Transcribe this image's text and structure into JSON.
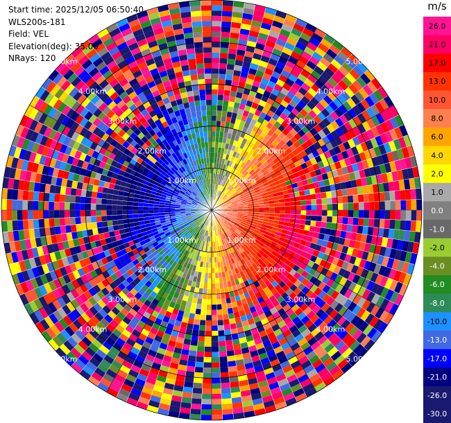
{
  "header": {
    "start_time": "Start time: 2025/12/05 06:50:40",
    "instrument": "WLS200s-181",
    "field": "Field: VEL",
    "elevation": "Elevation(deg): 35.00",
    "nrays": "NRays: 120"
  },
  "colorbar": {
    "unit": "m/s",
    "levels": [
      {
        "label": "26.0",
        "color": "#ff1493"
      },
      {
        "label": "21.0",
        "color": "#ff0066"
      },
      {
        "label": "17.0",
        "color": "#ff0000"
      },
      {
        "label": "13.0",
        "color": "#ff3300"
      },
      {
        "label": "10.0",
        "color": "#ff5533"
      },
      {
        "label": "8.0",
        "color": "#ff7f50"
      },
      {
        "label": "6.0",
        "color": "#ffa500"
      },
      {
        "label": "4.0",
        "color": "#ffd700"
      },
      {
        "label": "2.0",
        "color": "#ffff00"
      },
      {
        "label": "1.0",
        "color": "#a9a9a9"
      },
      {
        "label": "0.0",
        "color": "#808080"
      },
      {
        "label": "-1.0",
        "color": "#696969"
      },
      {
        "label": "-2.0",
        "color": "#9acd32"
      },
      {
        "label": "-4.0",
        "color": "#6b8e23"
      },
      {
        "label": "-6.0",
        "color": "#228b22"
      },
      {
        "label": "-8.0",
        "color": "#2e8b57"
      },
      {
        "label": "-10.0",
        "color": "#1e90ff"
      },
      {
        "label": "-13.0",
        "color": "#4169e1"
      },
      {
        "label": "-17.0",
        "color": "#0000ff"
      },
      {
        "label": "-21.0",
        "color": "#000080"
      },
      {
        "label": "-26.0",
        "color": "#191970"
      },
      {
        "label": "-30.0",
        "color": "#191970"
      }
    ]
  },
  "chart_data": {
    "type": "heatmap",
    "projection": "polar-ppi",
    "field": "VEL",
    "unit": "m/s",
    "n_rays": 120,
    "max_range_km": 5.0,
    "range_rings_km": [
      1.0,
      2.0,
      3.0,
      4.0,
      5.0
    ],
    "ring_label_texts": [
      "1.00km",
      "2.00km",
      "3.00km",
      "4.00km",
      "5.00km"
    ],
    "vmin": -30.0,
    "vmax": 30.0,
    "pattern": "positive (red/pink) velocities east and south-east, negative (blue/green) velocities west and north-west, noisy random values beyond ~2 km"
  }
}
